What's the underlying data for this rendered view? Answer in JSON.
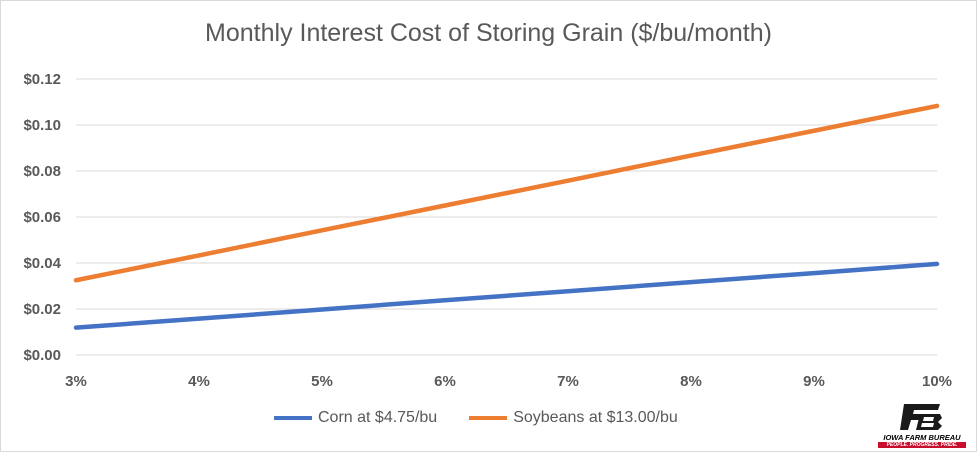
{
  "chart_data": {
    "type": "line",
    "title": "Monthly Interest Cost of Storing Grain ($/bu/month)",
    "xlabel": "",
    "ylabel": "",
    "categories": [
      "3%",
      "4%",
      "5%",
      "6%",
      "7%",
      "8%",
      "9%",
      "10%"
    ],
    "x": [
      3,
      4,
      5,
      6,
      7,
      8,
      9,
      10
    ],
    "ylim": [
      0,
      0.12
    ],
    "yticks": [
      "$0.00",
      "$0.02",
      "$0.04",
      "$0.06",
      "$0.08",
      "$0.10",
      "$0.12"
    ],
    "grid": true,
    "legend_position": "bottom",
    "series": [
      {
        "name": "Corn at $4.75/bu",
        "color": "#4472c4",
        "values": [
          0.0119,
          0.0158,
          0.0198,
          0.0238,
          0.0277,
          0.0317,
          0.0356,
          0.0396
        ]
      },
      {
        "name": "Soybeans at $13.00/bu",
        "color": "#ed7d31",
        "values": [
          0.0325,
          0.0433,
          0.0542,
          0.065,
          0.0758,
          0.0867,
          0.0975,
          0.1083
        ]
      }
    ]
  },
  "logo": {
    "name": "IOWA FARM BUREAU",
    "tagline": "PEOPLE. PROGRESS. PRIDE.",
    "colors": {
      "mark": "#1a1a1a",
      "tag": "#c8102e"
    }
  }
}
